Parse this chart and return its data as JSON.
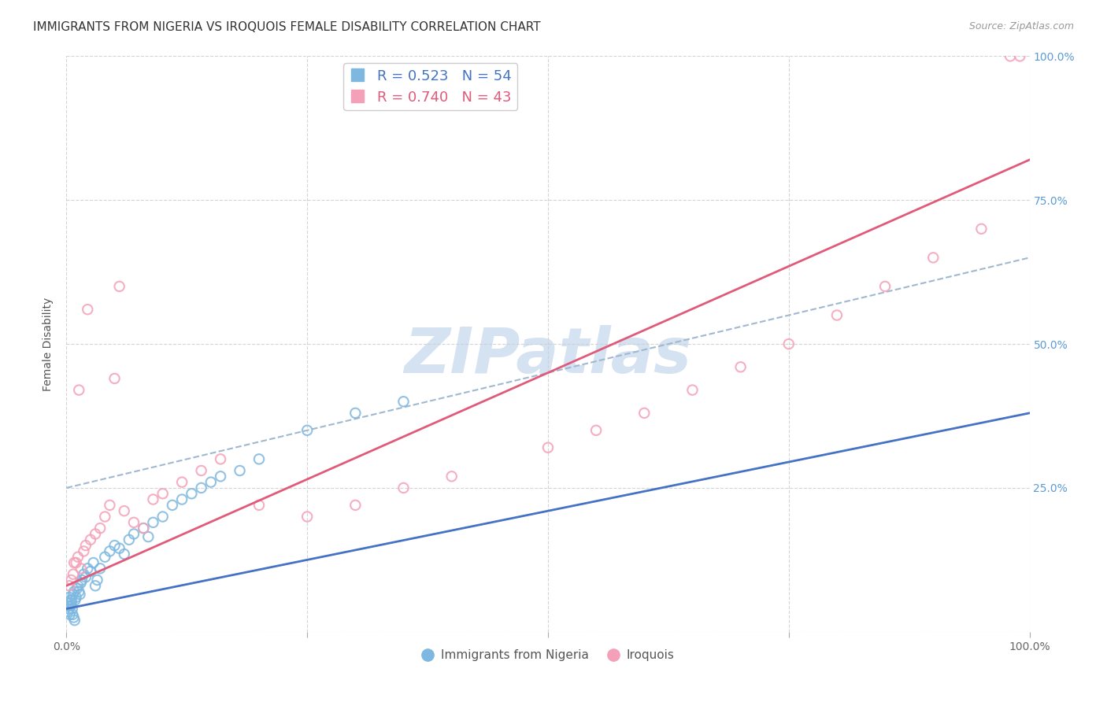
{
  "title": "IMMIGRANTS FROM NIGERIA VS IROQUOIS FEMALE DISABILITY CORRELATION CHART",
  "source": "Source: ZipAtlas.com",
  "ylabel": "Female Disability",
  "legend_label1": "Immigrants from Nigeria",
  "legend_label2": "Iroquois",
  "R1": 0.523,
  "N1": 54,
  "R2": 0.74,
  "N2": 43,
  "color1": "#7eb8e0",
  "color2": "#f4a0b8",
  "trendline1_color": "#4472c4",
  "trendline2_color": "#e05a7a",
  "dashed_line_color": "#a0b8d0",
  "background_color": "#ffffff",
  "grid_color": "#d0d0d0",
  "watermark": "ZIPatlas",
  "watermark_color": "#d0dff0",
  "right_axis_color": "#5b9bd5",
  "title_fontsize": 11,
  "source_fontsize": 9,
  "nigeria_x": [
    0.1,
    0.2,
    0.3,
    0.4,
    0.5,
    0.6,
    0.7,
    0.8,
    0.9,
    1.0,
    1.1,
    1.2,
    1.3,
    1.4,
    1.5,
    1.6,
    1.8,
    2.0,
    2.2,
    2.5,
    2.8,
    3.0,
    3.2,
    3.5,
    4.0,
    4.5,
    5.0,
    5.5,
    6.0,
    6.5,
    7.0,
    8.0,
    8.5,
    9.0,
    10.0,
    11.0,
    12.0,
    13.0,
    14.0,
    15.0,
    16.0,
    18.0,
    20.0,
    25.0,
    30.0,
    35.0,
    0.15,
    0.25,
    0.35,
    0.45,
    0.55,
    0.65,
    0.75,
    0.85
  ],
  "nigeria_y": [
    5.0,
    4.5,
    6.0,
    5.5,
    5.0,
    4.0,
    6.5,
    7.0,
    5.5,
    6.0,
    7.5,
    8.0,
    7.0,
    6.5,
    8.5,
    9.0,
    10.0,
    9.5,
    11.0,
    10.5,
    12.0,
    8.0,
    9.0,
    11.0,
    13.0,
    14.0,
    15.0,
    14.5,
    13.5,
    16.0,
    17.0,
    18.0,
    16.5,
    19.0,
    20.0,
    22.0,
    23.0,
    24.0,
    25.0,
    26.0,
    27.0,
    28.0,
    30.0,
    35.0,
    38.0,
    40.0,
    3.5,
    4.0,
    3.0,
    4.5,
    5.5,
    3.0,
    2.5,
    2.0
  ],
  "iroquois_x": [
    0.3,
    0.5,
    0.7,
    1.0,
    1.2,
    1.5,
    1.8,
    2.0,
    2.5,
    3.0,
    3.5,
    4.0,
    4.5,
    5.0,
    6.0,
    7.0,
    8.0,
    9.0,
    10.0,
    12.0,
    14.0,
    16.0,
    20.0,
    25.0,
    30.0,
    35.0,
    40.0,
    50.0,
    55.0,
    60.0,
    65.0,
    70.0,
    75.0,
    80.0,
    85.0,
    90.0,
    95.0,
    98.0,
    99.0,
    0.8,
    1.3,
    2.2,
    5.5
  ],
  "iroquois_y": [
    8.0,
    9.0,
    10.0,
    12.0,
    13.0,
    11.0,
    14.0,
    15.0,
    16.0,
    17.0,
    18.0,
    20.0,
    22.0,
    44.0,
    21.0,
    19.0,
    18.0,
    23.0,
    24.0,
    26.0,
    28.0,
    30.0,
    22.0,
    20.0,
    22.0,
    25.0,
    27.0,
    32.0,
    35.0,
    38.0,
    42.0,
    46.0,
    50.0,
    55.0,
    60.0,
    65.0,
    70.0,
    100.0,
    100.0,
    12.0,
    42.0,
    56.0,
    60.0
  ],
  "xlim": [
    0,
    100
  ],
  "ylim": [
    0,
    100
  ],
  "nigeria_trend_x0": 0,
  "nigeria_trend_y0": 4.0,
  "nigeria_trend_x1": 100,
  "nigeria_trend_y1": 38.0,
  "iroquois_trend_x0": 0,
  "iroquois_trend_y0": 8.0,
  "iroquois_trend_x1": 100,
  "iroquois_trend_y1": 82.0,
  "dash_x0": 0,
  "dash_y0": 25.0,
  "dash_x1": 100,
  "dash_y1": 65.0
}
